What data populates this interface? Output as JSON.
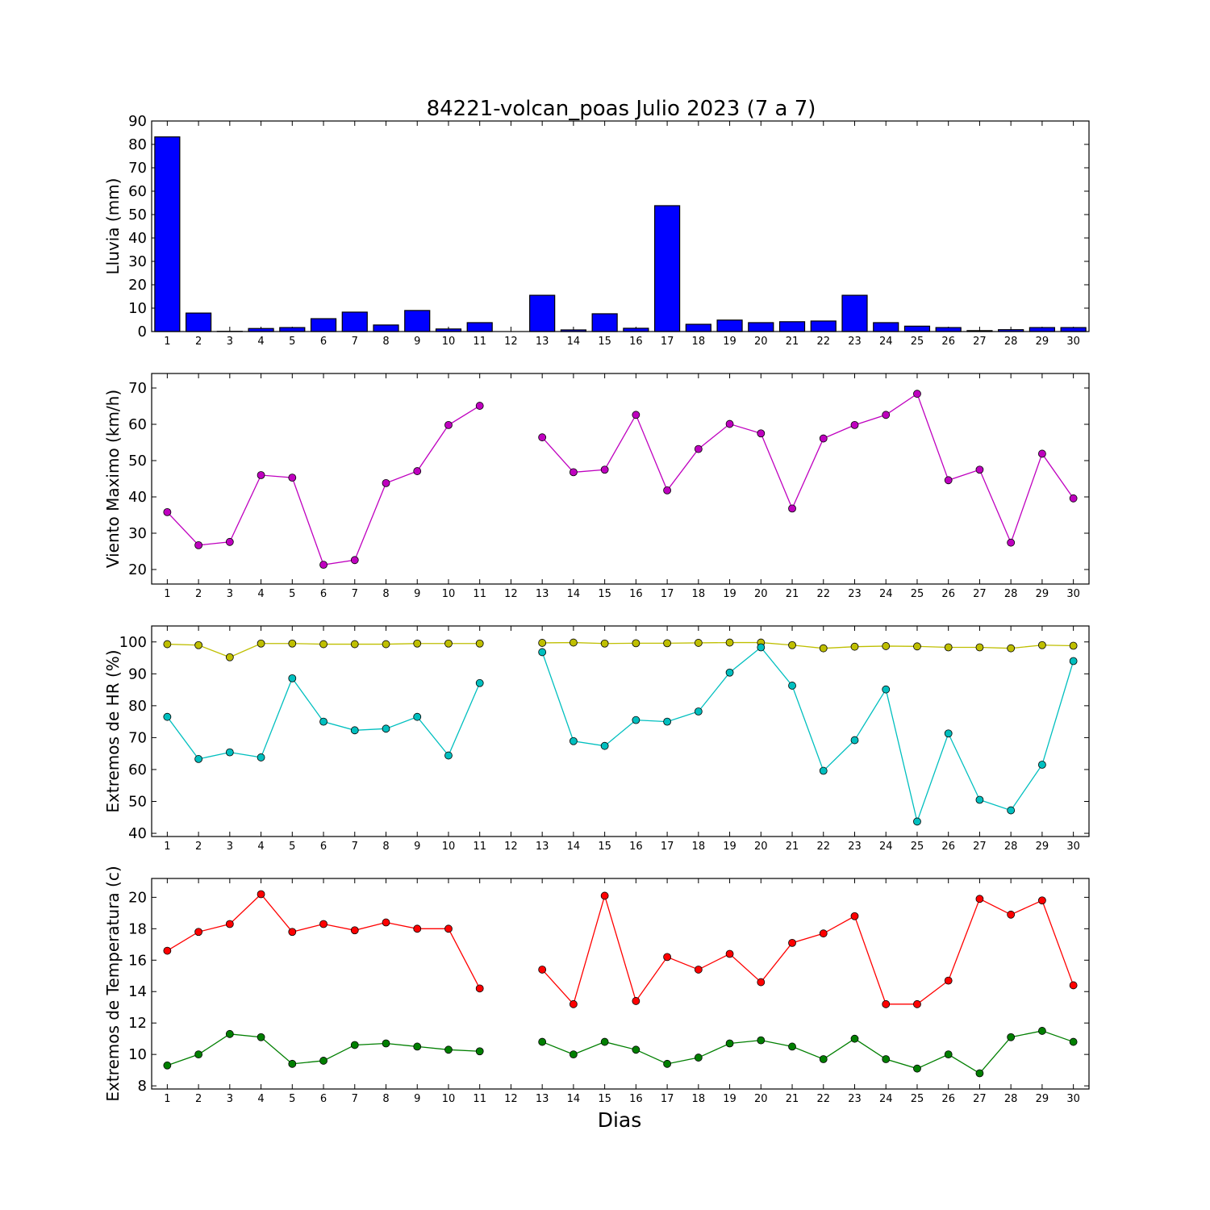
{
  "title": "84221-volcan_poas Julio 2023  (7 a 7)",
  "chart_data": {
    "x_label": "Dias",
    "days": [
      1,
      2,
      3,
      4,
      5,
      6,
      7,
      8,
      9,
      10,
      11,
      12,
      13,
      14,
      15,
      16,
      17,
      18,
      19,
      20,
      21,
      22,
      23,
      24,
      25,
      26,
      27,
      28,
      29,
      30
    ],
    "panels": [
      {
        "type": "bar",
        "ylabel": "Lluvia (mm)",
        "ylim": [
          0,
          90
        ],
        "yticks": [
          0,
          10,
          20,
          30,
          40,
          50,
          60,
          70,
          80,
          90
        ],
        "series": [
          {
            "color": "#0000ff",
            "values": [
              83.2,
              7.9,
              0.1,
              1.3,
              1.7,
              5.5,
              8.3,
              2.8,
              9.0,
              1.1,
              3.8,
              0.0,
              15.5,
              0.7,
              7.6,
              1.4,
              53.8,
              3.1,
              4.9,
              3.8,
              4.2,
              4.5,
              15.5,
              3.8,
              2.3,
              1.7,
              0.4,
              0.8,
              1.7,
              1.7
            ]
          }
        ]
      },
      {
        "type": "line",
        "ylabel": "Viento Maximo (km/h)",
        "ylim": [
          16,
          74
        ],
        "yticks": [
          20,
          30,
          40,
          50,
          60,
          70
        ],
        "series": [
          {
            "color": "#bf00bf",
            "values": [
              35.8,
              26.7,
              27.6,
              46.0,
              45.3,
              21.3,
              22.6,
              43.8,
              47.1,
              59.8,
              65.1,
              null,
              56.4,
              46.8,
              47.5,
              62.6,
              41.8,
              53.2,
              60.1,
              57.5,
              36.8,
              56.1,
              59.8,
              62.6,
              68.4,
              44.6,
              47.5,
              27.4,
              51.9,
              39.6
            ]
          }
        ]
      },
      {
        "type": "line",
        "ylabel": "Extremos de HR (%)",
        "ylim": [
          39,
          105
        ],
        "yticks": [
          40,
          50,
          60,
          70,
          80,
          90,
          100
        ],
        "series": [
          {
            "color": "#bfbf00",
            "values": [
              99.3,
              99.0,
              95.2,
              99.5,
              99.5,
              99.3,
              99.3,
              99.3,
              99.5,
              99.5,
              99.5,
              null,
              99.7,
              99.8,
              99.5,
              99.6,
              99.6,
              99.7,
              99.8,
              99.8,
              99.0,
              98.0,
              98.5,
              98.7,
              98.6,
              98.3,
              98.3,
              98.0,
              99.0,
              98.8
            ]
          },
          {
            "color": "#00bfbf",
            "values": [
              76.5,
              63.3,
              65.4,
              63.8,
              88.6,
              75.0,
              72.3,
              72.8,
              76.5,
              64.4,
              87.1,
              null,
              96.8,
              68.9,
              67.4,
              75.5,
              75.0,
              78.2,
              90.4,
              98.3,
              86.3,
              59.6,
              69.2,
              85.1,
              43.7,
              71.3,
              50.5,
              47.2,
              61.5,
              94.0
            ]
          }
        ]
      },
      {
        "type": "line",
        "ylabel": "Extremos de Temperatura (c)",
        "ylim": [
          7.8,
          21.2
        ],
        "yticks": [
          8,
          10,
          12,
          14,
          16,
          18,
          20
        ],
        "series": [
          {
            "color": "#ff0000",
            "values": [
              16.6,
              17.8,
              18.3,
              20.2,
              17.8,
              18.3,
              17.9,
              18.4,
              18.0,
              18.0,
              14.2,
              null,
              15.4,
              13.2,
              20.1,
              13.4,
              16.2,
              15.4,
              16.4,
              14.6,
              17.1,
              17.7,
              18.8,
              13.2,
              13.2,
              14.7,
              19.9,
              18.9,
              19.8,
              14.4
            ]
          },
          {
            "color": "#007f00",
            "values": [
              9.3,
              10.0,
              11.3,
              11.1,
              9.4,
              9.6,
              10.6,
              10.7,
              10.5,
              10.3,
              10.2,
              null,
              10.8,
              10.0,
              10.8,
              10.3,
              9.4,
              9.8,
              10.7,
              10.9,
              10.5,
              9.7,
              11.0,
              9.7,
              9.1,
              10.0,
              8.8,
              11.1,
              11.5,
              10.8
            ]
          }
        ]
      }
    ]
  }
}
